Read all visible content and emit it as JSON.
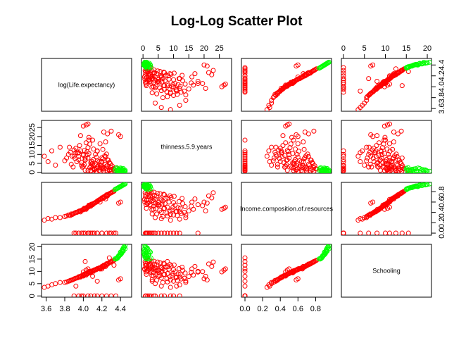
{
  "chart_data": {
    "type": "scatter",
    "title": "Log-Log Scatter Plot",
    "variables": [
      "log(Life.expectancy)",
      "thinness.5.9.years",
      "Income.composition.of.resources",
      "Schooling"
    ],
    "axes": [
      {
        "range": [
          3.55,
          4.52
        ],
        "ticks": [
          3.6,
          3.8,
          4.0,
          4.2,
          4.4
        ],
        "tick_labels": [
          "3.6",
          "3.8",
          "4.0",
          "4.2",
          "4.4"
        ]
      },
      {
        "range": [
          -0.5,
          29
        ],
        "ticks": [
          0,
          5,
          10,
          15,
          20,
          25
        ],
        "tick_labels": [
          "0",
          "5",
          "10",
          "15",
          "20",
          "25"
        ]
      },
      {
        "range": [
          -0.04,
          0.98
        ],
        "ticks": [
          0.0,
          0.2,
          0.4,
          0.6,
          0.8
        ],
        "tick_labels": [
          "0.0",
          "0.2",
          "0.4",
          "0.6",
          "0.8"
        ]
      },
      {
        "range": [
          -0.5,
          21
        ],
        "ticks": [
          0,
          5,
          10,
          15,
          20
        ],
        "tick_labels": [
          "0",
          "5",
          "10",
          "15",
          "20"
        ]
      }
    ],
    "axis_placement": {
      "top": [
        1,
        3
      ],
      "right": [
        0,
        2
      ],
      "bottom": [
        0,
        2
      ],
      "left": [
        1,
        3
      ]
    },
    "series": [
      {
        "name": "",
        "color": "#ff0000",
        "marker": "open-circle",
        "points": [
          [
            4.18,
            2.5,
            0.65,
            11.5
          ],
          [
            4.1,
            5.0,
            0.55,
            10.2
          ],
          [
            4.05,
            8.0,
            0.5,
            9.1
          ],
          [
            4.22,
            1.8,
            0.7,
            12.3
          ],
          [
            4.0,
            9.5,
            0.45,
            8.4
          ],
          [
            3.95,
            11.0,
            0.42,
            7.6
          ],
          [
            4.12,
            4.0,
            0.58,
            10.6
          ],
          [
            4.25,
            2.2,
            0.74,
            13.1
          ],
          [
            4.15,
            6.5,
            0.62,
            11.0
          ],
          [
            3.9,
            12.5,
            0.38,
            6.9
          ],
          [
            4.08,
            3.5,
            0.52,
            9.5
          ],
          [
            4.28,
            1.5,
            0.76,
            13.6
          ],
          [
            3.85,
            14.0,
            0.35,
            6.1
          ],
          [
            4.02,
            7.0,
            0.48,
            8.8
          ],
          [
            4.2,
            3.0,
            0.68,
            12.0
          ],
          [
            4.06,
            10.5,
            0.54,
            9.8
          ],
          [
            3.98,
            5.5,
            0.44,
            8.2
          ],
          [
            4.14,
            8.5,
            0.6,
            10.9
          ],
          [
            4.3,
            2.8,
            0.78,
            14.0
          ],
          [
            3.93,
            6.0,
            0.4,
            7.3
          ],
          [
            4.24,
            4.5,
            0.72,
            12.7
          ],
          [
            4.11,
            13.0,
            0.57,
            10.4
          ],
          [
            3.88,
            9.0,
            0.36,
            6.5
          ],
          [
            4.17,
            1.2,
            0.64,
            11.3
          ],
          [
            4.04,
            11.5,
            0.49,
            9.0
          ],
          [
            4.26,
            3.8,
            0.73,
            12.9
          ],
          [
            3.96,
            15.0,
            0.43,
            7.9
          ],
          [
            4.09,
            6.2,
            0.56,
            10.0
          ],
          [
            4.21,
            7.5,
            0.67,
            11.8
          ],
          [
            4.01,
            4.2,
            0.47,
            8.6
          ],
          [
            4.32,
            2.0,
            0.8,
            14.3
          ],
          [
            3.82,
            8.0,
            0.33,
            5.7
          ],
          [
            4.13,
            10.0,
            0.59,
            10.7
          ],
          [
            4.19,
            5.8,
            0.66,
            11.6
          ],
          [
            3.97,
            12.0,
            0.41,
            7.7
          ],
          [
            4.07,
            2.6,
            0.53,
            9.6
          ],
          [
            4.23,
            9.2,
            0.69,
            12.2
          ],
          [
            4.03,
            16.5,
            0.46,
            8.5
          ],
          [
            4.16,
            3.2,
            0.63,
            11.2
          ],
          [
            3.91,
            7.8,
            0.39,
            7.1
          ],
          [
            4.27,
            6.8,
            0.75,
            13.3
          ],
          [
            4.1,
            18.0,
            0.55,
            9.7
          ],
          [
            3.99,
            2.9,
            0.45,
            8.3
          ],
          [
            4.29,
            4.8,
            0.77,
            13.8
          ],
          [
            4.05,
            13.8,
            0.51,
            9.3
          ],
          [
            4.12,
            1.6,
            0.58,
            10.5
          ],
          [
            3.94,
            10.8,
            0.41,
            7.4
          ],
          [
            4.2,
            8.2,
            0.68,
            11.9
          ],
          [
            4.08,
            5.3,
            0.54,
            9.4
          ],
          [
            4.31,
            3.6,
            0.79,
            14.1
          ],
          [
            3.87,
            4.5,
            0.37,
            6.4
          ],
          [
            4.15,
            11.8,
            0.61,
            11.1
          ],
          [
            4.02,
            6.8,
            0.47,
            8.7
          ],
          [
            4.22,
            2.4,
            0.7,
            12.4
          ],
          [
            4.06,
            19.5,
            0.53,
            9.9
          ],
          [
            3.92,
            13.5,
            0.4,
            7.2
          ],
          [
            4.18,
            4.0,
            0.65,
            11.4
          ],
          [
            4.25,
            10.2,
            0.71,
            12.6
          ],
          [
            4.0,
            3.4,
            0.46,
            8.1
          ],
          [
            4.11,
            7.2,
            0.57,
            10.3
          ],
          [
            3.86,
            11.2,
            0.34,
            6.3
          ],
          [
            4.28,
            5.6,
            0.76,
            13.5
          ],
          [
            4.04,
            9.8,
            0.5,
            9.2
          ],
          [
            4.14,
            2.1,
            0.6,
            10.8
          ],
          [
            3.8,
            6.5,
            0.32,
            5.5
          ],
          [
            4.21,
            12.8,
            0.67,
            11.7
          ],
          [
            4.09,
            4.6,
            0.56,
            10.1
          ],
          [
            3.95,
            8.8,
            0.42,
            7.8
          ],
          [
            4.33,
            1.9,
            0.81,
            14.5
          ],
          [
            4.07,
            15.8,
            0.52,
            9.6
          ],
          [
            4.17,
            6.0,
            0.64,
            11.4
          ],
          [
            3.89,
            3.0,
            0.37,
            6.7
          ],
          [
            4.24,
            8.8,
            0.72,
            12.8
          ],
          [
            4.01,
            12.2,
            0.48,
            8.9
          ],
          [
            4.13,
            5.0,
            0.59,
            10.6
          ],
          [
            3.97,
            20.5,
            0.43,
            8.0
          ],
          [
            4.19,
            3.6,
            0.66,
            11.5
          ],
          [
            4.26,
            7.0,
            0.74,
            13.0
          ],
          [
            3.84,
            10.0,
            0.35,
            6.0
          ],
          [
            4.1,
            2.3,
            0.55,
            10.2
          ],
          [
            4.03,
            26.5,
            0.48,
            10.5
          ],
          [
            4.05,
            27.0,
            0.5,
            11.0
          ],
          [
            4.0,
            25.8,
            0.46,
            9.8
          ],
          [
            4.22,
            22.5,
            0.68,
            12.0
          ],
          [
            4.26,
            21.5,
            0.72,
            13.0
          ],
          [
            4.3,
            23.0,
            0.78,
            13.8
          ],
          [
            4.18,
            16.0,
            0.6,
            11.0
          ],
          [
            4.24,
            17.0,
            0.66,
            12.0
          ],
          [
            3.7,
            4.0,
            0.3,
            5.0
          ],
          [
            3.62,
            6.0,
            0.28,
            4.0
          ],
          [
            3.58,
            9.0,
            0.25,
            3.5
          ],
          [
            3.75,
            14.0,
            0.3,
            5.5
          ],
          [
            3.66,
            12.0,
            0.27,
            4.5
          ],
          [
            4.4,
            20.0,
            0.6,
            7.0
          ],
          [
            4.38,
            21.0,
            0.58,
            6.5
          ],
          [
            4.05,
            1.0,
            0.0,
            0.0
          ],
          [
            3.98,
            4.0,
            0.0,
            0.0
          ],
          [
            4.12,
            2.0,
            0.0,
            0.0
          ],
          [
            4.2,
            6.0,
            0.0,
            0.0
          ],
          [
            3.9,
            9.0,
            0.0,
            0.0
          ],
          [
            4.3,
            1.5,
            0.0,
            0.0
          ],
          [
            4.15,
            12.0,
            0.0,
            0.0
          ],
          [
            4.08,
            0.8,
            0.0,
            0.0
          ],
          [
            4.25,
            3.5,
            0.0,
            0.0
          ],
          [
            4.0,
            10.0,
            0.0,
            0.0
          ],
          [
            4.35,
            2.5,
            0.0,
            0.0
          ],
          [
            3.95,
            7.0,
            0.0,
            0.0
          ],
          [
            4.1,
            5.0,
            0.0,
            8.0
          ],
          [
            4.2,
            2.0,
            0.0,
            11.0
          ],
          [
            4.02,
            8.0,
            0.0,
            14.0
          ],
          [
            4.28,
            1.0,
            0.0,
            15.5
          ],
          [
            3.92,
            11.0,
            0.0,
            4.0
          ],
          [
            4.15,
            3.0,
            0.0,
            6.0
          ],
          [
            4.06,
            18.0,
            0.0,
            10.0
          ],
          [
            4.33,
            1.2,
            0.0,
            12.5
          ],
          [
            4.18,
            0.5,
            0.65,
            11.0
          ],
          [
            4.22,
            0.8,
            0.7,
            12.5
          ],
          [
            4.08,
            1.0,
            0.55,
            9.8
          ],
          [
            4.14,
            0.6,
            0.6,
            10.7
          ],
          [
            4.26,
            0.9,
            0.74,
            13.2
          ],
          [
            4.02,
            1.1,
            0.48,
            8.8
          ],
          [
            4.3,
            0.7,
            0.78,
            13.9
          ],
          [
            4.12,
            1.3,
            0.58,
            10.4
          ]
        ]
      },
      {
        "name": "",
        "color": "#00ff00",
        "marker": "open-circle",
        "points": [
          [
            4.38,
            0.6,
            0.88,
            16.0
          ],
          [
            4.4,
            0.5,
            0.9,
            17.0
          ],
          [
            4.42,
            0.8,
            0.92,
            18.5
          ],
          [
            4.41,
            1.0,
            0.91,
            17.5
          ],
          [
            4.39,
            1.2,
            0.89,
            16.5
          ],
          [
            4.43,
            0.4,
            0.93,
            19.0
          ],
          [
            4.37,
            1.5,
            0.87,
            15.5
          ],
          [
            4.44,
            0.7,
            0.94,
            20.0
          ],
          [
            4.4,
            1.8,
            0.9,
            16.8
          ],
          [
            4.42,
            0.3,
            0.92,
            18.0
          ],
          [
            4.36,
            0.9,
            0.86,
            15.2
          ],
          [
            4.45,
            0.6,
            0.95,
            20.5
          ],
          [
            4.41,
            2.0,
            0.91,
            17.2
          ],
          [
            4.38,
            1.1,
            0.88,
            16.2
          ],
          [
            4.43,
            1.4,
            0.93,
            19.5
          ],
          [
            4.39,
            0.5,
            0.89,
            16.6
          ],
          [
            4.4,
            2.4,
            0.9,
            17.8
          ],
          [
            4.44,
            1.0,
            0.94,
            19.8
          ],
          [
            4.37,
            0.8,
            0.87,
            15.8
          ],
          [
            4.42,
            1.6,
            0.92,
            18.8
          ],
          [
            4.35,
            2.2,
            0.85,
            15.0
          ],
          [
            4.41,
            0.4,
            0.91,
            17.4
          ],
          [
            4.43,
            2.1,
            0.93,
            18.2
          ],
          [
            4.38,
            1.7,
            0.88,
            16.4
          ],
          [
            4.36,
            2.6,
            0.86,
            15.4
          ],
          [
            4.34,
            1.3,
            0.84,
            15.1
          ],
          [
            4.4,
            0.2,
            0.9,
            17.6
          ],
          [
            4.45,
            1.2,
            0.95,
            19.2
          ]
        ]
      }
    ],
    "grid": false,
    "legend": "none"
  }
}
